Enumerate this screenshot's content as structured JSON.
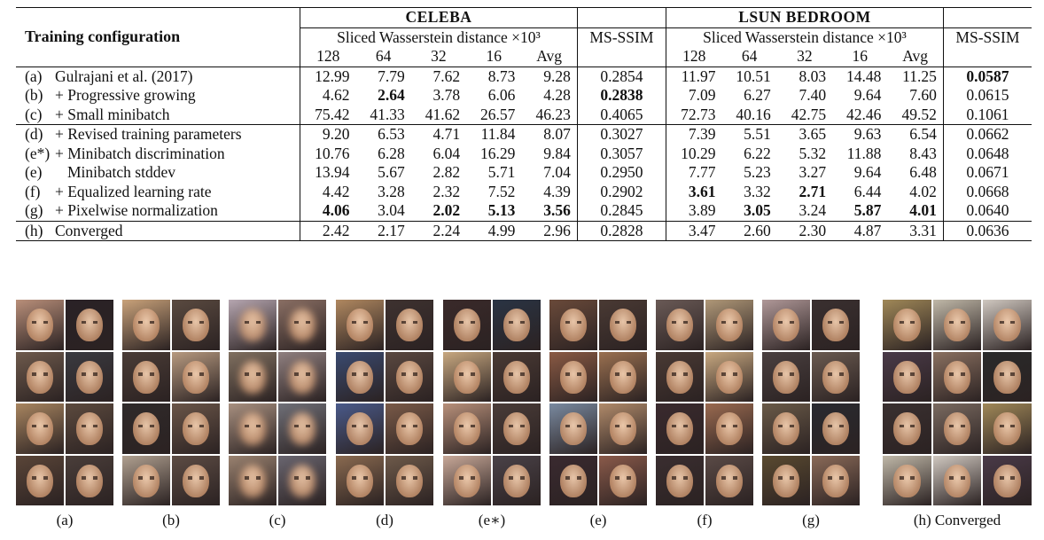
{
  "table": {
    "row_header": "Training configuration",
    "groups": [
      {
        "name": "CELEBA",
        "metric_sw": "Sliced Wasserstein distance ×10³",
        "metric_ms": "MS-SSIM"
      },
      {
        "name": "LSUN BEDROOM",
        "metric_sw": "Sliced Wasserstein distance ×10³",
        "metric_ms": "MS-SSIM"
      }
    ],
    "resolutions": [
      "128",
      "64",
      "32",
      "16",
      "Avg"
    ],
    "rows": [
      {
        "id": "(a)",
        "name": "Gulrajani et al. (2017)",
        "celeba": [
          "12.99",
          "7.79",
          "7.62",
          "8.73",
          "9.28"
        ],
        "celeba_ms": "0.2854",
        "lsun": [
          "11.97",
          "10.51",
          "8.03",
          "14.48",
          "11.25"
        ],
        "lsun_ms": "0.0587"
      },
      {
        "id": "(b)",
        "name": "+ Progressive growing",
        "celeba": [
          "4.62",
          "2.64",
          "3.78",
          "6.06",
          "4.28"
        ],
        "celeba_ms": "0.2838",
        "lsun": [
          "7.09",
          "6.27",
          "7.40",
          "9.64",
          "7.60"
        ],
        "lsun_ms": "0.0615"
      },
      {
        "id": "(c)",
        "name": "+ Small minibatch",
        "celeba": [
          "75.42",
          "41.33",
          "41.62",
          "26.57",
          "46.23"
        ],
        "celeba_ms": "0.4065",
        "lsun": [
          "72.73",
          "40.16",
          "42.75",
          "42.46",
          "49.52"
        ],
        "lsun_ms": "0.1061"
      },
      {
        "id": "(d)",
        "name": "+ Revised training parameters",
        "celeba": [
          "9.20",
          "6.53",
          "4.71",
          "11.84",
          "8.07"
        ],
        "celeba_ms": "0.3027",
        "lsun": [
          "7.39",
          "5.51",
          "3.65",
          "9.63",
          "6.54"
        ],
        "lsun_ms": "0.0662"
      },
      {
        "id": "(e*)",
        "name": "+ Minibatch discrimination",
        "celeba": [
          "10.76",
          "6.28",
          "6.04",
          "16.29",
          "9.84"
        ],
        "celeba_ms": "0.3057",
        "lsun": [
          "10.29",
          "6.22",
          "5.32",
          "11.88",
          "8.43"
        ],
        "lsun_ms": "0.0648"
      },
      {
        "id": "(e)",
        "name": "Minibatch stddev",
        "celeba": [
          "13.94",
          "5.67",
          "2.82",
          "5.71",
          "7.04"
        ],
        "celeba_ms": "0.2950",
        "lsun": [
          "7.77",
          "5.23",
          "3.27",
          "9.64",
          "6.48"
        ],
        "lsun_ms": "0.0671"
      },
      {
        "id": "(f)",
        "name": "+ Equalized learning rate",
        "celeba": [
          "4.42",
          "3.28",
          "2.32",
          "7.52",
          "4.39"
        ],
        "celeba_ms": "0.2902",
        "lsun": [
          "3.61",
          "3.32",
          "2.71",
          "6.44",
          "4.02"
        ],
        "lsun_ms": "0.0668"
      },
      {
        "id": "(g)",
        "name": "+ Pixelwise normalization",
        "celeba": [
          "4.06",
          "3.04",
          "2.02",
          "5.13",
          "3.56"
        ],
        "celeba_ms": "0.2845",
        "lsun": [
          "3.89",
          "3.05",
          "3.24",
          "5.87",
          "4.01"
        ],
        "lsun_ms": "0.0640"
      },
      {
        "id": "(h)",
        "name": "Converged",
        "celeba": [
          "2.42",
          "2.17",
          "2.24",
          "4.99",
          "2.96"
        ],
        "celeba_ms": "0.2828",
        "lsun": [
          "3.47",
          "2.60",
          "2.30",
          "4.87",
          "3.31"
        ],
        "lsun_ms": "0.0636"
      }
    ]
  },
  "figure": {
    "panels": [
      {
        "caption": "(a)",
        "palette": [
          "#b98f7a",
          "#2a2226",
          "#6e5a4c",
          "#3a3a40",
          "#a88560",
          "#5c4a3e",
          "#5a4538",
          "#4a3e3a"
        ]
      },
      {
        "caption": "(b)",
        "palette": [
          "#c9a27a",
          "#5a4a40",
          "#4a3c36",
          "#b79a80",
          "#2f2a2a",
          "#6a5548",
          "#b0a090",
          "#5d4c44"
        ]
      },
      {
        "caption": "(c)",
        "palette": [
          "#b6a6b0",
          "#8a6f64",
          "#807060",
          "#908080",
          "#a89080",
          "#707078",
          "#9a8270",
          "#6a6670"
        ]
      },
      {
        "caption": "(d)",
        "palette": [
          "#b08860",
          "#3e3230",
          "#3a4a70",
          "#5a4840",
          "#4a5a8a",
          "#7a5a48",
          "#8a6a50",
          "#6e5a4a"
        ]
      },
      {
        "caption": "(e∗)",
        "palette": [
          "#3a2a2a",
          "#2a3444",
          "#c8a880",
          "#4a3a34",
          "#b8907a",
          "#4a3c38",
          "#c8a898",
          "#4a4248"
        ]
      },
      {
        "caption": "(e)",
        "palette": [
          "#6a4a3a",
          "#4a3a34",
          "#8a5a44",
          "#9a7050",
          "#7a8aa0",
          "#b08a6a",
          "#3a2a30",
          "#8a5a4a"
        ]
      },
      {
        "caption": "(f)",
        "palette": [
          "#6a5a56",
          "#b09878",
          "#4a3a34",
          "#c8a880",
          "#3a2a2e",
          "#9a6a50",
          "#3a2e30",
          "#5a4a46"
        ]
      },
      {
        "caption": "(g)",
        "palette": [
          "#b09898",
          "#3a3030",
          "#4a4040",
          "#6a5a50",
          "#6a5a48",
          "#2a2a30",
          "#5a4a30",
          "#8a6a58"
        ]
      },
      {
        "caption": "(h) Converged",
        "palette": [
          "#a08858",
          "#c0b8a8",
          "#d0c8c0",
          "#4a3a48",
          "#8a7060",
          "#2a2a2a",
          "#3a3030",
          "#7a6a60"
        ]
      }
    ]
  }
}
